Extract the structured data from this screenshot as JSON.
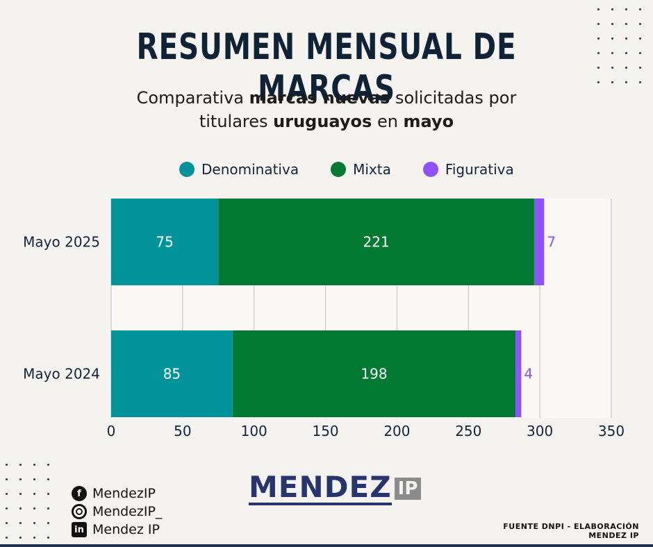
{
  "header": {
    "title": "RESUMEN MENSUAL DE MARCAS",
    "subtitle_parts": [
      {
        "text": "Comparativa ",
        "bold": false
      },
      {
        "text": "marcas nuevas",
        "bold": true
      },
      {
        "text": " solicitadas por",
        "bold": false
      },
      {
        "text": "\n",
        "bold": false
      },
      {
        "text": "titulares ",
        "bold": false
      },
      {
        "text": "uruguayos",
        "bold": true
      },
      {
        "text": " en ",
        "bold": false
      },
      {
        "text": "mayo",
        "bold": true
      }
    ]
  },
  "chart_data": {
    "type": "bar",
    "orientation": "horizontal",
    "stacked": true,
    "categories": [
      "Mayo 2025",
      "Mayo 2024"
    ],
    "series": [
      {
        "name": "Denominativa",
        "color": "#00949a",
        "values": [
          75,
          85
        ]
      },
      {
        "name": "Mixta",
        "color": "#007a33",
        "values": [
          221,
          198
        ]
      },
      {
        "name": "Figurativa",
        "color": "#8f52ff",
        "values": [
          7,
          4
        ]
      }
    ],
    "xticks": [
      "0",
      "50",
      "100",
      "150",
      "200",
      "250",
      "300",
      "350"
    ],
    "xlim": [
      0,
      350
    ],
    "grid": "vertical",
    "legend_position": "top"
  },
  "brand": {
    "name": "MENDEZ",
    "badge": "IP"
  },
  "socials": [
    {
      "icon": "facebook-icon",
      "label": "MendezIP"
    },
    {
      "icon": "instagram-icon",
      "label": "MendezIP_"
    },
    {
      "icon": "linkedin-icon",
      "label": "Mendez IP"
    }
  ],
  "footer": {
    "source": "FUENTE DNPI - ELABORACIÓN MENDEZ IP"
  },
  "colors": {
    "background": "#f5f3ef",
    "navy": "#0f2236",
    "dots": "#1e3354"
  }
}
